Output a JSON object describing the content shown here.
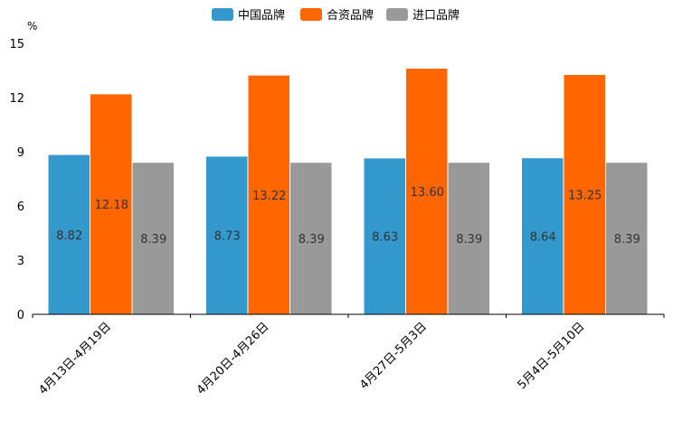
{
  "chart_data": {
    "type": "bar",
    "unit": "%",
    "categories": [
      "4月13日-4月19日",
      "4月20日-4月26日",
      "4月27日-5月3日",
      "5月4日-5月10日"
    ],
    "series": [
      {
        "name": "中国品牌",
        "color": "#3399cc",
        "values": [
          8.82,
          8.73,
          8.63,
          8.64
        ],
        "labels": [
          "8.82",
          "8.73",
          "8.63",
          "8.64"
        ]
      },
      {
        "name": "合资品牌",
        "color": "#ff6600",
        "values": [
          12.18,
          13.22,
          13.6,
          13.25
        ],
        "labels": [
          "12.18",
          "13.22",
          "13.60",
          "13.25"
        ]
      },
      {
        "name": "进口品牌",
        "color": "#999999",
        "values": [
          8.39,
          8.39,
          8.39,
          8.39
        ],
        "labels": [
          "8.39",
          "8.39",
          "8.39",
          "8.39"
        ]
      }
    ],
    "yticks": [
      "0",
      "3",
      "6",
      "9",
      "12",
      "15"
    ],
    "ylim": [
      0,
      15
    ],
    "grid": false,
    "legend_position": "top-center"
  }
}
